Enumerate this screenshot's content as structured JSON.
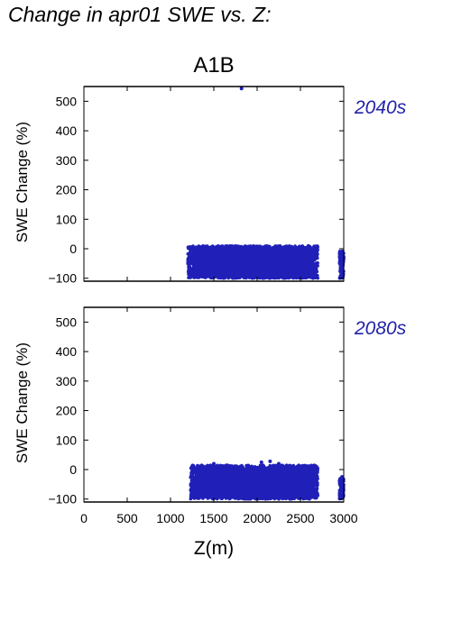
{
  "page_title": "Change in apr01 SWE vs. Z:",
  "scenario_label": "A1B",
  "colors": {
    "series": "#2020b8",
    "period_label": "#2222aa",
    "axis": "#000000"
  },
  "chart_data": [
    {
      "type": "scatter",
      "period": "2040s",
      "ylabel": "SWE Change (%)",
      "xlabel": "",
      "xlim": [
        0,
        3000
      ],
      "ylim": [
        -110,
        550
      ],
      "xticks": [
        0,
        500,
        1000,
        1500,
        2000,
        2500,
        3000
      ],
      "yticks": [
        -100,
        0,
        100,
        200,
        300,
        400,
        500
      ],
      "show_x_tick_labels": false,
      "grid": false,
      "dense_band": {
        "x_min": 1200,
        "x_max": 2700,
        "y_min": -100,
        "y_max": 10
      },
      "isolated_band": {
        "x_min": 2950,
        "x_max": 3000,
        "y_min": -100,
        "y_max": -5
      },
      "outliers": [
        [
          1820,
          543
        ]
      ]
    },
    {
      "type": "scatter",
      "period": "2080s",
      "ylabel": "SWE Change (%)",
      "xlabel": "Z(m)",
      "xlim": [
        0,
        3000
      ],
      "ylim": [
        -110,
        550
      ],
      "xticks": [
        0,
        500,
        1000,
        1500,
        2000,
        2500,
        3000
      ],
      "yticks": [
        -100,
        0,
        100,
        200,
        300,
        400,
        500
      ],
      "show_x_tick_labels": true,
      "grid": false,
      "dense_band": {
        "x_min": 1230,
        "x_max": 2700,
        "y_min": -100,
        "y_max": 15
      },
      "isolated_band": {
        "x_min": 2950,
        "x_max": 3000,
        "y_min": -100,
        "y_max": -30
      },
      "outliers": [
        [
          1500,
          20
        ],
        [
          2050,
          25
        ],
        [
          2150,
          28
        ],
        [
          2250,
          20
        ],
        [
          2650,
          5
        ],
        [
          2980,
          -25
        ]
      ]
    }
  ]
}
